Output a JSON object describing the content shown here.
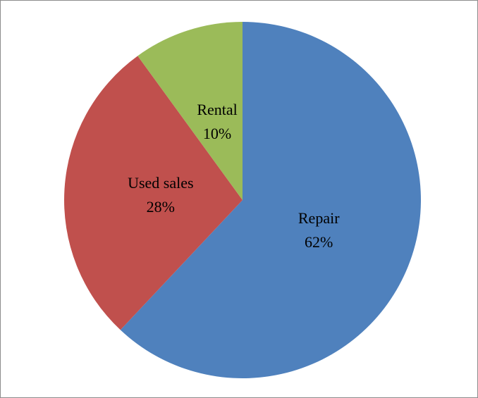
{
  "chart_data": {
    "type": "pie",
    "categories": [
      "Repair",
      "Used sales",
      "Rental"
    ],
    "values": [
      62,
      28,
      10
    ],
    "value_labels": [
      "62%",
      "28%",
      "10%"
    ],
    "colors": [
      "#4f81bd",
      "#c0504d",
      "#9bbb59"
    ]
  }
}
